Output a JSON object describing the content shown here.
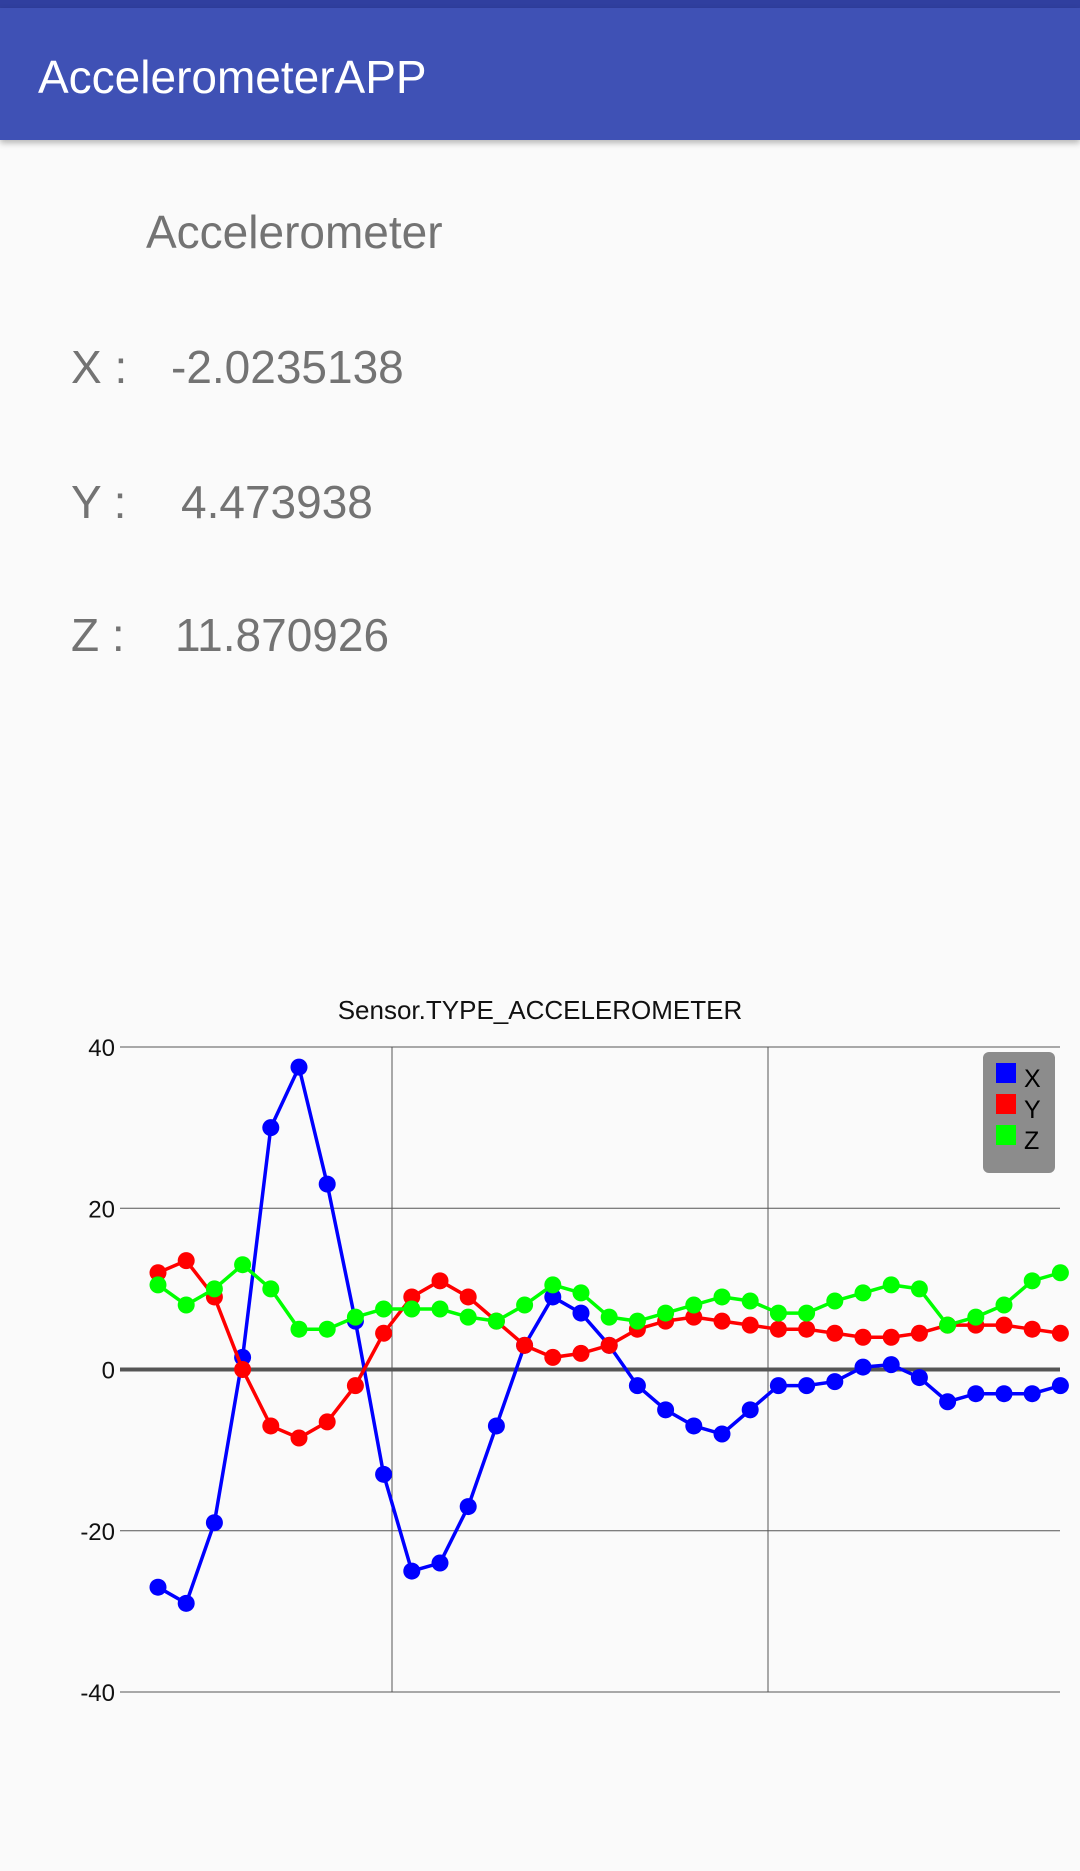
{
  "app": {
    "title": "AccelerometerAPP"
  },
  "main": {
    "section_title": "Accelerometer",
    "readings": [
      {
        "label": "X :",
        "value": "-2.0235138"
      },
      {
        "label": "Y :",
        "value": "4.473938"
      },
      {
        "label": "Z :",
        "value": "11.870926"
      }
    ]
  },
  "colors": {
    "appbar": "#3f51b5",
    "statusbar": "#303f9f",
    "x": "#0000ff",
    "y": "#ff0000",
    "z": "#00ff00"
  },
  "chart_data": {
    "type": "line",
    "title": "Sensor.TYPE_ACCELEROMETER",
    "xlabel": "",
    "ylabel": "",
    "ylim": [
      -40,
      40
    ],
    "yticks": [
      -40,
      -20,
      0,
      20,
      40
    ],
    "grid": true,
    "legend_position": "top-right",
    "series": [
      {
        "name": "X",
        "color": "#0000ff",
        "values": [
          -27,
          -29,
          -19,
          1.5,
          30,
          37.5,
          23,
          6,
          -13,
          -25,
          -24,
          -17,
          -7,
          3,
          9,
          7,
          3,
          -2,
          -5,
          -7,
          -8,
          -5,
          -2,
          -2,
          -1.5,
          0.3,
          0.6,
          -1,
          -4,
          -3,
          -3,
          -3,
          -2
        ]
      },
      {
        "name": "Y",
        "color": "#ff0000",
        "values": [
          12,
          13.5,
          9,
          0,
          -7,
          -8.5,
          -6.5,
          -2,
          4.5,
          9,
          11,
          9,
          6,
          3,
          1.5,
          2,
          3,
          5,
          6,
          6.5,
          6,
          5.5,
          5,
          5,
          4.5,
          4,
          4,
          4.5,
          5.5,
          5.5,
          5.5,
          5,
          4.5
        ]
      },
      {
        "name": "Z",
        "color": "#00ff00",
        "values": [
          10.5,
          8,
          10,
          13,
          10,
          5,
          5,
          6.5,
          7.5,
          7.5,
          7.5,
          6.5,
          6,
          8,
          10.5,
          9.5,
          6.5,
          6,
          7,
          8,
          9,
          8.5,
          7,
          7,
          8.5,
          9.5,
          10.5,
          10,
          5.5,
          6.5,
          8,
          11,
          12
        ]
      }
    ]
  }
}
